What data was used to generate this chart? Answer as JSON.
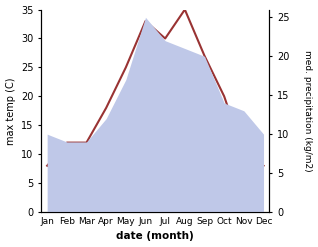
{
  "months": [
    "Jan",
    "Feb",
    "Mar",
    "Apr",
    "May",
    "Jun",
    "Jul",
    "Aug",
    "Sep",
    "Oct",
    "Nov",
    "Dec"
  ],
  "temperature": [
    8,
    12,
    12,
    18,
    25,
    33,
    30,
    35,
    27,
    20,
    10,
    8
  ],
  "precipitation": [
    10,
    9,
    9,
    12,
    17,
    25,
    22,
    21,
    20,
    14,
    13,
    10
  ],
  "temp_color": "#993333",
  "precip_fill_color": "#bfc8e8",
  "xlabel": "date (month)",
  "ylabel_left": "max temp (C)",
  "ylabel_right": "med. precipitation (kg/m2)",
  "temp_ylim": [
    0,
    35
  ],
  "precip_ylim": [
    0,
    26
  ],
  "temp_yticks": [
    0,
    5,
    10,
    15,
    20,
    25,
    30,
    35
  ],
  "precip_yticks": [
    0,
    5,
    10,
    15,
    20,
    25
  ],
  "background_color": "#ffffff"
}
